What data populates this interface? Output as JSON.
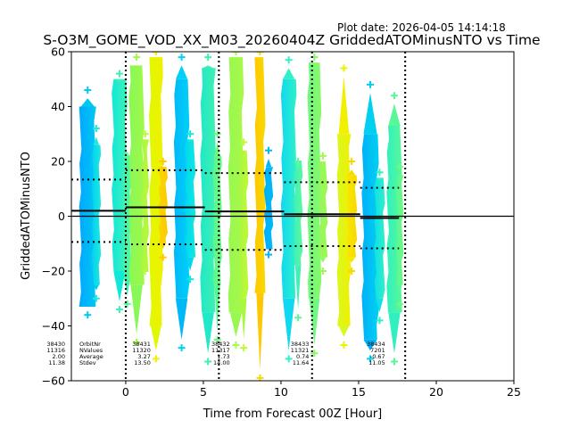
{
  "chart_data": {
    "type": "scatter",
    "plot_date": "Plot date: 2026-04-05 14:14:18",
    "title": "S-O3M_GOME_VOD_XX_M03_20260404Z GriddedATOMinusNTO vs Time",
    "xlabel": "Time from Forecast 00Z [Hour]",
    "ylabel": "GriddedATOMinusNTO",
    "xlim": [
      -3.5,
      25
    ],
    "ylim": [
      -60,
      60
    ],
    "xticks": [
      "0",
      "5",
      "10",
      "15",
      "20",
      "25"
    ],
    "xtick_values": [
      0,
      5,
      10,
      15,
      20,
      25
    ],
    "yticks": [
      "60",
      "40",
      "20",
      "0",
      "−20",
      "−40",
      "−60"
    ],
    "ytick_values": [
      60,
      40,
      20,
      0,
      -20,
      -40,
      -60
    ],
    "vlines_dotted": [
      0,
      6,
      12,
      18
    ],
    "zero_line": 0,
    "stats_labels": [
      "OrbitNr",
      "NValues",
      "Average",
      "Stdev"
    ],
    "orbits": [
      {
        "orbit": "38430",
        "nvalues": "11316",
        "average": "2.00",
        "stdev": "11.38",
        "mean": 2.0,
        "sd": 11.38,
        "x_start": -3.5,
        "x_end": 0.0
      },
      {
        "orbit": "38431",
        "nvalues": "11320",
        "average": "3.27",
        "stdev": "13.50",
        "mean": 3.27,
        "sd": 13.5,
        "x_start": 0.0,
        "x_end": 5.1
      },
      {
        "orbit": "38432",
        "nvalues": "11317",
        "average": "1.73",
        "stdev": "14.00",
        "mean": 1.73,
        "sd": 14.0,
        "x_start": 5.1,
        "x_end": 10.2
      },
      {
        "orbit": "38433",
        "nvalues": "11321",
        "average": "0.74",
        "stdev": "11.64",
        "mean": 0.74,
        "sd": 11.64,
        "x_start": 10.2,
        "x_end": 15.1
      },
      {
        "orbit": "38434",
        "nvalues": "7201",
        "average": "-0.67",
        "stdev": "11.05",
        "mean": -0.67,
        "sd": 11.05,
        "x_start": 15.1,
        "x_end": 17.6
      }
    ],
    "stripes": [
      {
        "x": -3.0,
        "w": 1.1,
        "top": 40,
        "bottom": -33,
        "color": "#00a8ff",
        "color2": "#00c8f0",
        "outlier_hi": 46,
        "outlier_lo": -36
      },
      {
        "x": -2.2,
        "w": 0.6,
        "top": 26,
        "bottom": -25,
        "color": "#00d0f0",
        "color2": "#20e8e0",
        "outlier_hi": 32,
        "outlier_lo": -30
      },
      {
        "x": -0.9,
        "w": 1.0,
        "top": 50,
        "bottom": -20,
        "color": "#10e8d8",
        "color2": "#40f0b8",
        "outlier_hi": 52,
        "outlier_lo": -34
      },
      {
        "x": -0.2,
        "w": 0.6,
        "top": 22,
        "bottom": -23,
        "color": "#40f0b0",
        "color2": "#58f898",
        "outlier_hi": 22,
        "outlier_lo": -32
      },
      {
        "x": 0.2,
        "w": 1.0,
        "top": 55,
        "bottom": -25,
        "color": "#88f858",
        "color2": "#a0f848",
        "outlier_hi": 58,
        "outlier_lo": -46
      },
      {
        "x": 1.0,
        "w": 0.5,
        "top": 28,
        "bottom": -20,
        "color": "#a8f840",
        "color2": "#b8f838",
        "outlier_hi": 30,
        "outlier_lo": -20
      },
      {
        "x": 1.5,
        "w": 0.9,
        "top": 58,
        "bottom": -40,
        "color": "#e0f800",
        "color2": "#f0f000",
        "outlier_hi": 60,
        "outlier_lo": -52
      },
      {
        "x": 2.1,
        "w": 0.6,
        "top": 18,
        "bottom": -10,
        "color": "#f8d800",
        "color2": "#ffc800",
        "outlier_hi": 20,
        "outlier_lo": -15
      },
      {
        "x": 3.1,
        "w": 1.0,
        "top": 50,
        "bottom": -30,
        "color": "#00b8f8",
        "color2": "#00d0f8",
        "outlier_hi": 58,
        "outlier_lo": -48
      },
      {
        "x": 3.8,
        "w": 0.7,
        "top": 28,
        "bottom": -15,
        "color": "#00d8f0",
        "color2": "#10e8e0",
        "outlier_hi": 30,
        "outlier_lo": -23
      },
      {
        "x": 4.8,
        "w": 1.0,
        "top": 54,
        "bottom": -35,
        "color": "#20e8c8",
        "color2": "#40f0b0",
        "outlier_hi": 58,
        "outlier_lo": -53
      },
      {
        "x": 5.6,
        "w": 0.6,
        "top": 22,
        "bottom": -25,
        "color": "#58f890",
        "color2": "#70f880",
        "outlier_hi": 30,
        "outlier_lo": -45
      },
      {
        "x": 6.6,
        "w": 1.0,
        "top": 58,
        "bottom": -35,
        "color": "#98f850",
        "color2": "#a8f848",
        "outlier_hi": 60,
        "outlier_lo": -47
      },
      {
        "x": 7.3,
        "w": 0.6,
        "top": 24,
        "bottom": -30,
        "color": "#a8f840",
        "color2": "#c0f838",
        "outlier_hi": 27,
        "outlier_lo": -48
      },
      {
        "x": 8.3,
        "w": 0.7,
        "top": 58,
        "bottom": -28,
        "color": "#ffc800",
        "color2": "#f8d800",
        "outlier_hi": 60,
        "outlier_lo": -59
      },
      {
        "x": 8.9,
        "w": 0.6,
        "top": 18,
        "bottom": -12,
        "color": "#00b0f8",
        "color2": "#00b8f8",
        "outlier_hi": 24,
        "outlier_lo": -14
      },
      {
        "x": 10.0,
        "w": 1.0,
        "top": 50,
        "bottom": -30,
        "color": "#10d8f0",
        "color2": "#30f0c8",
        "outlier_hi": 57,
        "outlier_lo": -52
      },
      {
        "x": 10.8,
        "w": 0.6,
        "top": 20,
        "bottom": -18,
        "color": "#40f0b8",
        "color2": "#58f8a0",
        "outlier_hi": 20,
        "outlier_lo": -37
      },
      {
        "x": 11.7,
        "w": 0.9,
        "top": 56,
        "bottom": -30,
        "color": "#70f880",
        "color2": "#88f868",
        "outlier_hi": 58,
        "outlier_lo": -50
      },
      {
        "x": 12.4,
        "w": 0.6,
        "top": 20,
        "bottom": -15,
        "color": "#90f860",
        "color2": "#a0f850",
        "outlier_hi": 22,
        "outlier_lo": -20
      },
      {
        "x": 13.6,
        "w": 0.9,
        "top": 30,
        "bottom": -40,
        "color": "#d8f820",
        "color2": "#f0f000",
        "outlier_hi": 54,
        "outlier_lo": -47
      },
      {
        "x": 14.2,
        "w": 0.7,
        "top": 15,
        "bottom": -15,
        "color": "#f8e800",
        "color2": "#f8d800",
        "outlier_hi": 20,
        "outlier_lo": -20
      },
      {
        "x": 15.2,
        "w": 1.1,
        "top": 30,
        "bottom": -45,
        "color": "#00b0f8",
        "color2": "#00d0f0",
        "outlier_hi": 48,
        "outlier_lo": -52
      },
      {
        "x": 16.0,
        "w": 0.7,
        "top": 14,
        "bottom": -30,
        "color": "#10e0e8",
        "color2": "#30f0c8",
        "outlier_hi": 16,
        "outlier_lo": -38
      },
      {
        "x": 16.8,
        "w": 1.0,
        "top": 33,
        "bottom": -35,
        "color": "#30f0c0",
        "color2": "#58f898",
        "outlier_hi": 44,
        "outlier_lo": -53
      },
      {
        "x": 17.4,
        "w": 0.5,
        "top": 15,
        "bottom": -25,
        "color": "#58f898",
        "color2": "#70f880",
        "outlier_hi": 18,
        "outlier_lo": -32
      }
    ]
  }
}
